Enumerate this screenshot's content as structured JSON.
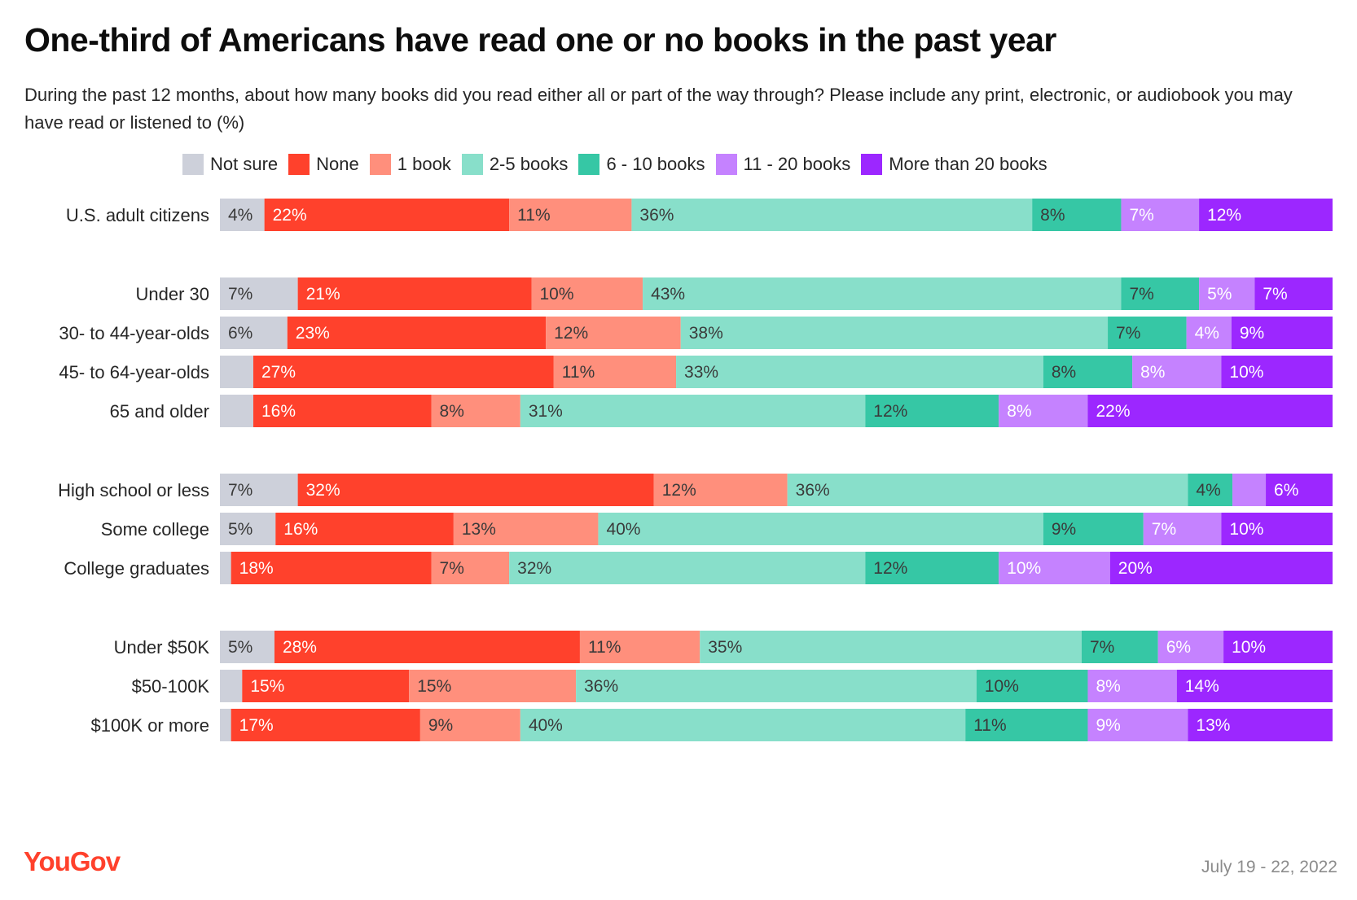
{
  "chart_data": {
    "type": "bar",
    "orientation": "horizontal",
    "stacked": true,
    "title": "One-third of Americans have read one or no books in the past year",
    "subtitle": "During the past 12 months, about how many books did you read either all or part of the way through? Please include any print, electronic, or audiobook you may have read or listened to (%)",
    "legend_placement": "top",
    "grid": false,
    "xlim": [
      0,
      100
    ],
    "categories": [
      "U.S. adult citizens",
      "Under 30",
      "30- to 44-year-olds",
      "45- to 64-year-olds",
      "65 and older",
      "High school or less",
      "Some college",
      "College graduates",
      "Under $50K",
      "$50-100K",
      "$100K or more"
    ],
    "groups": [
      [
        0
      ],
      [
        1,
        2,
        3,
        4
      ],
      [
        5,
        6,
        7
      ],
      [
        8,
        9,
        10
      ]
    ],
    "series": [
      {
        "name": "Not sure",
        "color": "#cdd0da",
        "label_color": "#3a3a3a",
        "values": [
          4,
          7,
          6,
          3,
          3,
          7,
          5,
          1,
          5,
          2,
          1
        ],
        "labels": [
          "4%",
          "7%",
          "6%",
          "",
          "",
          "7%",
          "5%",
          "",
          "5%",
          "",
          ""
        ]
      },
      {
        "name": "None",
        "color": "#ff412c",
        "label_color": "#ffffff",
        "values": [
          22,
          21,
          23,
          27,
          16,
          32,
          16,
          18,
          28,
          15,
          17
        ],
        "labels": [
          "22%",
          "21%",
          "23%",
          "27%",
          "16%",
          "32%",
          "16%",
          "18%",
          "28%",
          "15%",
          "17%"
        ]
      },
      {
        "name": "1 book",
        "color": "#ff8f7c",
        "label_color": "#3a3a3a",
        "values": [
          11,
          10,
          12,
          11,
          8,
          12,
          13,
          7,
          11,
          15,
          9
        ],
        "labels": [
          "11%",
          "10%",
          "12%",
          "11%",
          "8%",
          "12%",
          "13%",
          "7%",
          "11%",
          "15%",
          "9%"
        ]
      },
      {
        "name": "2-5 books",
        "color": "#88dfca",
        "label_color": "#3a3a3a",
        "values": [
          36,
          43,
          38,
          33,
          31,
          36,
          40,
          32,
          35,
          36,
          40
        ],
        "labels": [
          "36%",
          "43%",
          "38%",
          "33%",
          "31%",
          "36%",
          "40%",
          "32%",
          "35%",
          "36%",
          "40%"
        ]
      },
      {
        "name": "6 - 10 books",
        "color": "#36c7a5",
        "label_color": "#3a3a3a",
        "values": [
          8,
          7,
          7,
          8,
          12,
          4,
          9,
          12,
          7,
          10,
          11
        ],
        "labels": [
          "8%",
          "7%",
          "7%",
          "8%",
          "12%",
          "4%",
          "9%",
          "12%",
          "7%",
          "10%",
          "11%"
        ]
      },
      {
        "name": "11 - 20 books",
        "color": "#c582ff",
        "label_color": "#ffffff",
        "values": [
          7,
          5,
          4,
          8,
          8,
          3,
          7,
          10,
          6,
          8,
          9
        ],
        "labels": [
          "7%",
          "5%",
          "4%",
          "8%",
          "8%",
          "",
          "7%",
          "10%",
          "6%",
          "8%",
          "9%"
        ]
      },
      {
        "name": "More than 20 books",
        "color": "#9c27ff",
        "label_color": "#ffffff",
        "values": [
          12,
          7,
          9,
          10,
          22,
          6,
          10,
          20,
          10,
          14,
          13
        ],
        "labels": [
          "12%",
          "7%",
          "9%",
          "10%",
          "22%",
          "6%",
          "10%",
          "20%",
          "10%",
          "14%",
          "13%"
        ]
      }
    ]
  },
  "footer": {
    "brand": "YouGov",
    "date": "July 19 - 22, 2022"
  }
}
